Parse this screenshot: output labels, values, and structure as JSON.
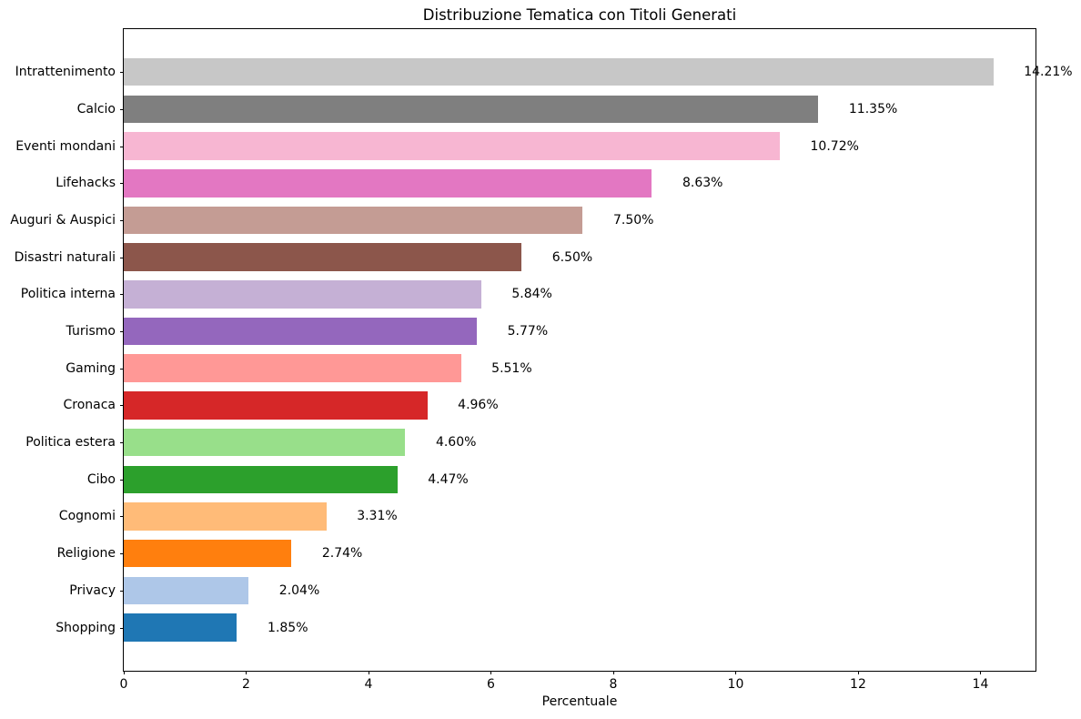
{
  "chart_data": {
    "type": "bar",
    "orientation": "horizontal",
    "title": "Distribuzione Tematica con Titoli Generati",
    "xlabel": "Percentuale",
    "ylabel": "",
    "categories": [
      "Intrattenimento",
      "Calcio",
      "Eventi mondani",
      "Lifehacks",
      "Auguri & Auspici",
      "Disastri naturali",
      "Politica interna",
      "Turismo",
      "Gaming",
      "Cronaca",
      "Politica estera",
      "Cibo",
      "Cognomi",
      "Religione",
      "Privacy",
      "Shopping"
    ],
    "values": [
      14.21,
      11.35,
      10.72,
      8.63,
      7.5,
      6.5,
      5.84,
      5.77,
      5.51,
      4.96,
      4.6,
      4.47,
      3.31,
      2.74,
      2.04,
      1.85
    ],
    "value_labels": [
      "14.21%",
      "11.35%",
      "10.72%",
      "8.63%",
      "7.50%",
      "6.50%",
      "5.84%",
      "5.77%",
      "5.51%",
      "4.96%",
      "4.60%",
      "4.47%",
      "3.31%",
      "2.74%",
      "2.04%",
      "1.85%"
    ],
    "colors": [
      "#c7c7c7",
      "#7f7f7f",
      "#f7b6d2",
      "#e377c2",
      "#c49c94",
      "#8c564b",
      "#c5b0d5",
      "#9467bd",
      "#ff9896",
      "#d62728",
      "#98df8a",
      "#2ca02c",
      "#ffbb78",
      "#ff7f0e",
      "#aec7e8",
      "#1f77b4"
    ],
    "xlim": [
      0,
      14.9
    ],
    "xticks": [
      "0",
      "2",
      "4",
      "6",
      "8",
      "10",
      "12",
      "14"
    ],
    "grid": false,
    "legend": "none",
    "background": "#ffffff",
    "label_offset_units": 0.5
  }
}
